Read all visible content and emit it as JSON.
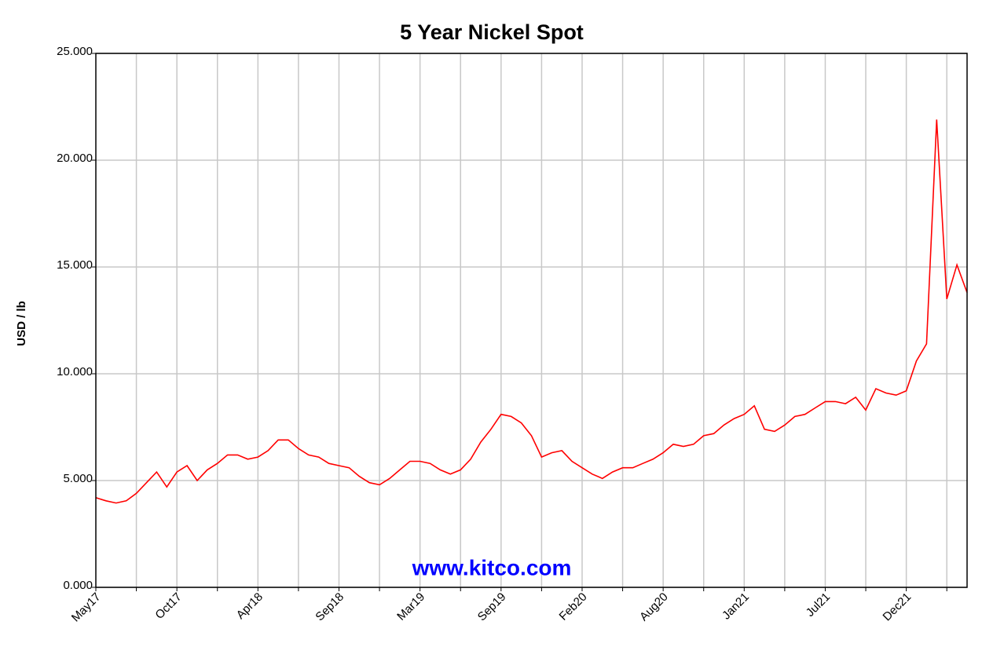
{
  "chart_data": {
    "type": "line",
    "title": "5 Year Nickel Spot",
    "y_label": "USD / lb",
    "watermark": "www.kitco.com",
    "categories": [
      "May17",
      null,
      null,
      null,
      null,
      null,
      null,
      null,
      "Oct17",
      null,
      null,
      null,
      null,
      null,
      null,
      null,
      "Apr18",
      null,
      null,
      null,
      null,
      null,
      null,
      null,
      "Sep18",
      null,
      null,
      null,
      null,
      null,
      null,
      null,
      "Mar19",
      null,
      null,
      null,
      null,
      null,
      null,
      null,
      "Sep19",
      null,
      null,
      null,
      null,
      null,
      null,
      null,
      "Feb20",
      null,
      null,
      null,
      null,
      null,
      null,
      null,
      "Aug20",
      null,
      null,
      null,
      null,
      null,
      null,
      null,
      "Jan21",
      null,
      null,
      null,
      null,
      null,
      null,
      null,
      "Jul21",
      null,
      null,
      null,
      null,
      null,
      null,
      null,
      "Dec21",
      null,
      null,
      null,
      null,
      null,
      null
    ],
    "series": [
      {
        "name": "Nickel",
        "color": "#ff0000",
        "values": [
          4.2,
          4.05,
          3.95,
          4.05,
          4.4,
          4.9,
          5.4,
          4.7,
          5.4,
          5.7,
          5.0,
          5.5,
          5.8,
          6.2,
          6.2,
          6.0,
          6.1,
          6.4,
          6.9,
          6.9,
          6.5,
          6.2,
          6.1,
          5.8,
          5.7,
          5.6,
          5.2,
          4.9,
          4.8,
          5.1,
          5.5,
          5.9,
          5.9,
          5.8,
          5.5,
          5.3,
          5.5,
          6.0,
          6.8,
          7.4,
          8.1,
          8.0,
          7.7,
          7.1,
          6.1,
          6.3,
          6.4,
          5.9,
          5.6,
          5.3,
          5.1,
          5.4,
          5.6,
          5.6,
          5.8,
          6.0,
          6.3,
          6.7,
          6.6,
          6.7,
          7.1,
          7.2,
          7.6,
          7.9,
          8.1,
          8.5,
          7.4,
          7.3,
          7.6,
          8.0,
          8.1,
          8.4,
          8.7,
          8.7,
          8.6,
          8.9,
          8.3,
          9.3,
          9.1,
          9.0,
          9.2,
          10.6,
          11.4,
          21.9,
          13.5,
          15.1,
          13.8
        ]
      }
    ],
    "ylim": [
      0,
      25
    ],
    "yticks": [
      {
        "value": 0,
        "label": "0.000"
      },
      {
        "value": 5,
        "label": "5.000"
      },
      {
        "value": 10,
        "label": "10.000"
      },
      {
        "value": 15,
        "label": "15.000"
      },
      {
        "value": 20,
        "label": "20.000"
      },
      {
        "value": 25,
        "label": "25.000"
      }
    ],
    "grid": true
  }
}
